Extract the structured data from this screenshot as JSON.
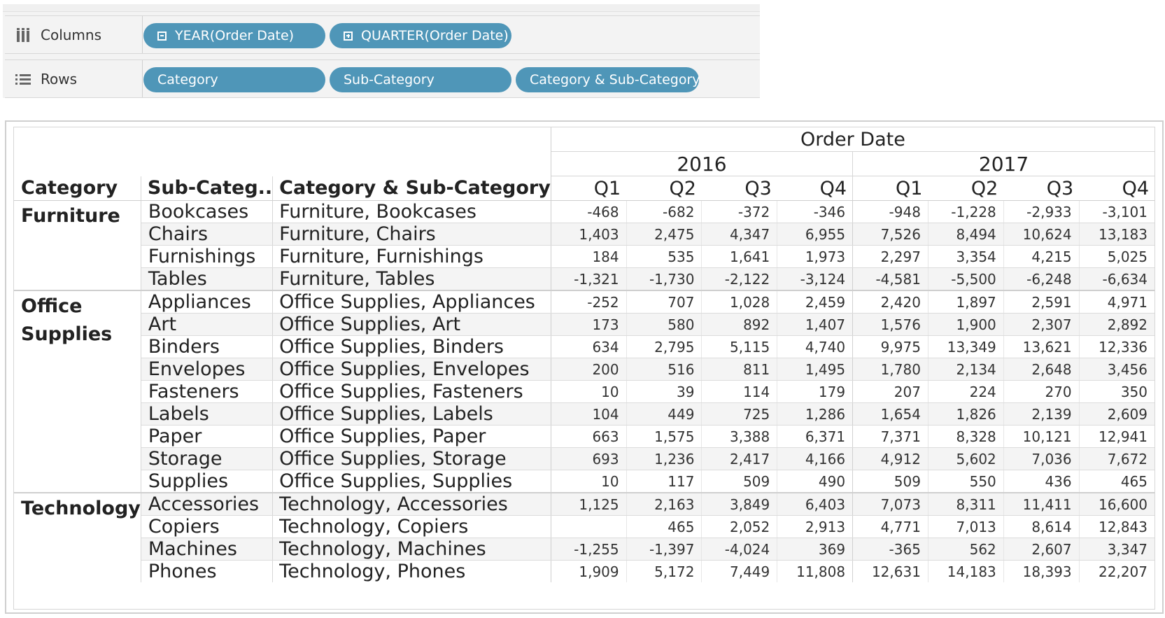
{
  "shelves": {
    "columns": {
      "label": "Columns",
      "icon": "columns-icon",
      "pills": [
        {
          "label": "YEAR(Order Date)",
          "icon": "collapse-icon"
        },
        {
          "label": "QUARTER(Order Date)",
          "icon": "expand-icon"
        }
      ]
    },
    "rows": {
      "label": "Rows",
      "icon": "rows-icon",
      "pills": [
        {
          "label": "Category"
        },
        {
          "label": "Sub-Category"
        },
        {
          "label": "Category & Sub-Category"
        }
      ]
    },
    "pill_color": "#4f96b8"
  },
  "crosstab": {
    "column_header_title": "Order Date",
    "years": [
      "2016",
      "2017"
    ],
    "quarters": [
      "Q1",
      "Q2",
      "Q3",
      "Q4"
    ],
    "row_headers": [
      "Category",
      "Sub-Categ..",
      "Category & Sub-Category"
    ],
    "groups": [
      {
        "category": "Furniture",
        "rows": [
          {
            "sub": "Bookcases",
            "csc": "Furniture, Bookcases",
            "values": [
              "-468",
              "-682",
              "-372",
              "-346",
              "-948",
              "-1,228",
              "-2,933",
              "-3,101"
            ]
          },
          {
            "sub": "Chairs",
            "csc": "Furniture, Chairs",
            "values": [
              "1,403",
              "2,475",
              "4,347",
              "6,955",
              "7,526",
              "8,494",
              "10,624",
              "13,183"
            ]
          },
          {
            "sub": "Furnishings",
            "csc": "Furniture, Furnishings",
            "values": [
              "184",
              "535",
              "1,641",
              "1,973",
              "2,297",
              "3,354",
              "4,215",
              "5,025"
            ]
          },
          {
            "sub": "Tables",
            "csc": "Furniture, Tables",
            "values": [
              "-1,321",
              "-1,730",
              "-2,122",
              "-3,124",
              "-4,581",
              "-5,500",
              "-6,248",
              "-6,634"
            ]
          }
        ]
      },
      {
        "category": "Office Supplies",
        "rows": [
          {
            "sub": "Appliances",
            "csc": "Office Supplies, Appliances",
            "values": [
              "-252",
              "707",
              "1,028",
              "2,459",
              "2,420",
              "1,897",
              "2,591",
              "4,971"
            ]
          },
          {
            "sub": "Art",
            "csc": "Office Supplies, Art",
            "values": [
              "173",
              "580",
              "892",
              "1,407",
              "1,576",
              "1,900",
              "2,307",
              "2,892"
            ]
          },
          {
            "sub": "Binders",
            "csc": "Office Supplies, Binders",
            "values": [
              "634",
              "2,795",
              "5,115",
              "4,740",
              "9,975",
              "13,349",
              "13,621",
              "12,336"
            ]
          },
          {
            "sub": "Envelopes",
            "csc": "Office Supplies, Envelopes",
            "values": [
              "200",
              "516",
              "811",
              "1,495",
              "1,780",
              "2,134",
              "2,648",
              "3,456"
            ]
          },
          {
            "sub": "Fasteners",
            "csc": "Office Supplies, Fasteners",
            "values": [
              "10",
              "39",
              "114",
              "179",
              "207",
              "224",
              "270",
              "350"
            ]
          },
          {
            "sub": "Labels",
            "csc": "Office Supplies, Labels",
            "values": [
              "104",
              "449",
              "725",
              "1,286",
              "1,654",
              "1,826",
              "2,139",
              "2,609"
            ]
          },
          {
            "sub": "Paper",
            "csc": "Office Supplies, Paper",
            "values": [
              "663",
              "1,575",
              "3,388",
              "6,371",
              "7,371",
              "8,328",
              "10,121",
              "12,941"
            ]
          },
          {
            "sub": "Storage",
            "csc": "Office Supplies, Storage",
            "values": [
              "693",
              "1,236",
              "2,417",
              "4,166",
              "4,912",
              "5,602",
              "7,036",
              "7,672"
            ]
          },
          {
            "sub": "Supplies",
            "csc": "Office Supplies, Supplies",
            "values": [
              "10",
              "117",
              "509",
              "490",
              "509",
              "550",
              "436",
              "465"
            ]
          }
        ]
      },
      {
        "category": "Technology",
        "rows": [
          {
            "sub": "Accessories",
            "csc": "Technology, Accessories",
            "values": [
              "1,125",
              "2,163",
              "3,849",
              "6,403",
              "7,073",
              "8,311",
              "11,411",
              "16,600"
            ]
          },
          {
            "sub": "Copiers",
            "csc": "Technology, Copiers",
            "values": [
              "",
              "465",
              "2,052",
              "2,913",
              "4,771",
              "7,013",
              "8,614",
              "12,843"
            ]
          },
          {
            "sub": "Machines",
            "csc": "Technology, Machines",
            "values": [
              "-1,255",
              "-1,397",
              "-4,024",
              "369",
              "-365",
              "562",
              "2,607",
              "3,347"
            ]
          },
          {
            "sub": "Phones",
            "csc": "Technology, Phones",
            "values": [
              "1,909",
              "5,172",
              "7,449",
              "11,808",
              "12,631",
              "14,183",
              "18,393",
              "22,207"
            ]
          }
        ]
      }
    ]
  }
}
